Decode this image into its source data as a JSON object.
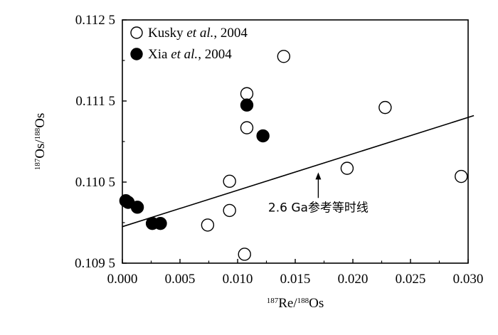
{
  "chart_data": {
    "type": "scatter",
    "xlabel": {
      "sup1": "187",
      "base1": "Re/",
      "sup2": "188",
      "base2": "Os"
    },
    "ylabel": {
      "sup1": "187",
      "base1": "Os/",
      "sup2": "188",
      "base2": "Os"
    },
    "xlim": [
      0.0,
      0.03
    ],
    "ylim": [
      0.1095,
      0.1125
    ],
    "x_ticks": [
      "0.000",
      "0.005",
      "0.010",
      "0.015",
      "0.020",
      "0.025",
      "0.030"
    ],
    "y_ticks": [
      "0.112 5",
      "0.111 5",
      "0.110 5",
      "0.109 5"
    ],
    "legend": {
      "placement": "top-left",
      "entries": [
        {
          "marker": "open-circle",
          "pre": "Kusky ",
          "italic": "et al.",
          "post": ", 2004"
        },
        {
          "marker": "filled-circle",
          "pre": "Xia ",
          "italic": "et al.",
          "post": ", 2004"
        }
      ]
    },
    "series": [
      {
        "name": "Kusky et al., 2004",
        "marker": "open",
        "points": [
          [
            0.014,
            0.11205
          ],
          [
            0.0108,
            0.11159
          ],
          [
            0.0108,
            0.11117
          ],
          [
            0.0093,
            0.11051
          ],
          [
            0.0093,
            0.11015
          ],
          [
            0.0074,
            0.10997
          ],
          [
            0.0106,
            0.10961
          ],
          [
            0.0195,
            0.11067
          ],
          [
            0.0228,
            0.11142
          ],
          [
            0.0294,
            0.11057
          ]
        ]
      },
      {
        "name": "Xia et al., 2004",
        "marker": "filled",
        "points": [
          [
            0.0108,
            0.11145
          ],
          [
            0.0122,
            0.11107
          ],
          [
            0.0003,
            0.11027
          ],
          [
            0.0005,
            0.11025
          ],
          [
            0.0013,
            0.11019
          ],
          [
            0.0026,
            0.10999
          ],
          [
            0.0033,
            0.10999
          ]
        ]
      }
    ],
    "reference_line": {
      "x": [
        0.0,
        0.0305
      ],
      "y": [
        0.10995,
        0.11132
      ]
    },
    "annotation": {
      "text": "2.6 Ga参考等时线",
      "arrow_to": [
        0.017,
        0.11062
      ]
    },
    "grid": false,
    "colors": {
      "axis": "#000000",
      "marker_fill": "#000000",
      "open_fill": "#ffffff"
    }
  }
}
